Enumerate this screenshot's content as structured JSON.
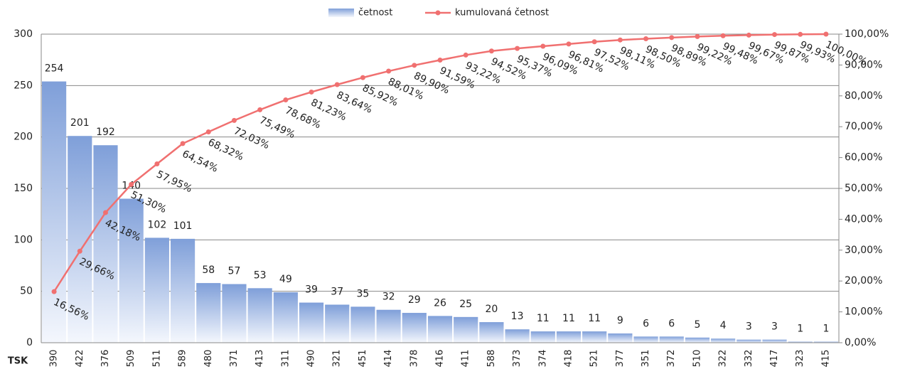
{
  "chart_data": {
    "type": "bar",
    "x_label": "TSK",
    "categories": [
      "390",
      "422",
      "376",
      "509",
      "511",
      "589",
      "480",
      "371",
      "413",
      "311",
      "490",
      "321",
      "451",
      "414",
      "378",
      "416",
      "411",
      "588",
      "373",
      "374",
      "418",
      "521",
      "377",
      "351",
      "372",
      "510",
      "322",
      "332",
      "417",
      "323",
      "415"
    ],
    "series": [
      {
        "name": "četnost",
        "type": "bar",
        "color": "#7f9fd9",
        "values": [
          254,
          201,
          192,
          140,
          102,
          101,
          58,
          57,
          53,
          49,
          39,
          37,
          35,
          32,
          29,
          26,
          25,
          20,
          13,
          11,
          11,
          11,
          9,
          6,
          6,
          5,
          4,
          3,
          3,
          1,
          1
        ]
      },
      {
        "name": "kumulovaná četnost",
        "type": "line",
        "axis": "y2",
        "color": "#f07070",
        "values": [
          16.56,
          29.66,
          42.18,
          51.3,
          57.95,
          64.54,
          68.32,
          72.03,
          75.49,
          78.68,
          81.23,
          83.64,
          85.92,
          88.01,
          89.9,
          91.59,
          93.22,
          94.52,
          95.37,
          96.09,
          96.81,
          97.52,
          98.11,
          98.5,
          98.89,
          99.22,
          99.48,
          99.67,
          99.87,
          99.93,
          100.0
        ],
        "value_labels": [
          "16,56%",
          "29,66%",
          "42,18%",
          "51,30%",
          "57,95%",
          "64,54%",
          "68,32%",
          "72,03%",
          "75,49%",
          "78,68%",
          "81,23%",
          "83,64%",
          "85,92%",
          "88,01%",
          "89,90%",
          "91,59%",
          "93,22%",
          "94,52%",
          "95,37%",
          "96,09%",
          "96,81%",
          "97,52%",
          "98,11%",
          "98,50%",
          "98,89%",
          "99,22%",
          "99,48%",
          "99,67%",
          "99,87%",
          "99,93%",
          "100,00%"
        ]
      }
    ],
    "ylim": [
      0,
      300
    ],
    "yticks": [
      0,
      50,
      100,
      150,
      200,
      250,
      300
    ],
    "y2lim": [
      0,
      100
    ],
    "y2ticks": [
      {
        "value": 0,
        "label": "0,00%"
      },
      {
        "value": 10,
        "label": "10,00%"
      },
      {
        "value": 20,
        "label": "20,00%"
      },
      {
        "value": 30,
        "label": "30,00%"
      },
      {
        "value": 40,
        "label": "40,00%"
      },
      {
        "value": 50,
        "label": "50,00%"
      },
      {
        "value": 60,
        "label": "60,00%"
      },
      {
        "value": 70,
        "label": "70,00%"
      },
      {
        "value": 80,
        "label": "80,00%"
      },
      {
        "value": 90,
        "label": "90,00%"
      },
      {
        "value": 100,
        "label": "100,00%"
      }
    ],
    "grid": true,
    "legend": "top"
  }
}
